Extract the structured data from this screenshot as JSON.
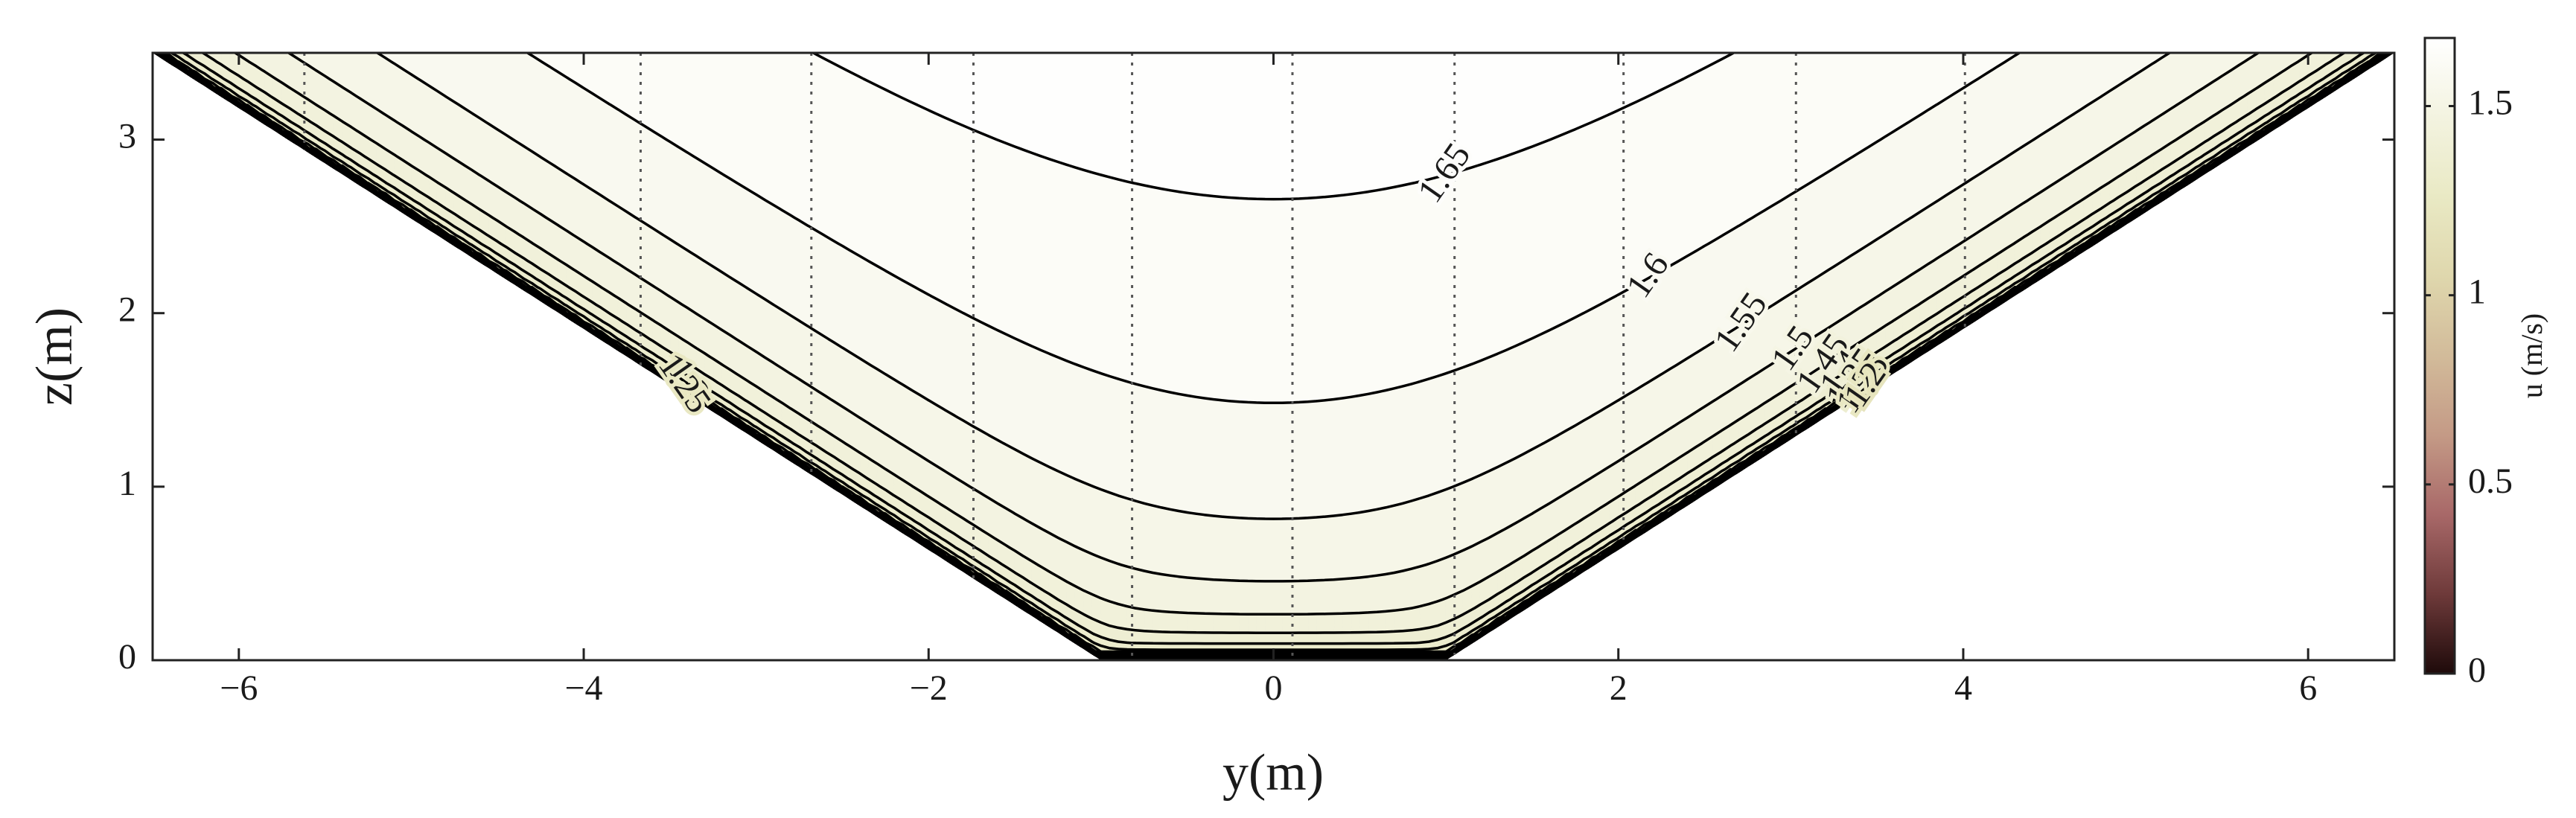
{
  "chart_data": {
    "type": "contour",
    "x_label": "y(m)",
    "y_label": "z(m)",
    "colorbar_label": "u (m/s)",
    "xlim": [
      -6.5,
      6.5
    ],
    "ylim": [
      0,
      3.5
    ],
    "xticks": [
      {
        "value": -6,
        "label": "−6"
      },
      {
        "value": -4,
        "label": "−4"
      },
      {
        "value": -2,
        "label": "−2"
      },
      0,
      2,
      4,
      6
    ],
    "yticks": [
      0,
      1,
      2,
      3
    ],
    "clim": [
      0,
      1.68
    ],
    "cticks": [
      0,
      0.5,
      1,
      1.5
    ],
    "colormap": [
      "#1e0a0a",
      "#6e3a3a",
      "#a86868",
      "#c49a86",
      "#d2bb9a",
      "#dfd7ad",
      "#e9e9c4",
      "#f3f3e0",
      "#ffffff"
    ],
    "channel": {
      "bottom": [
        -1,
        1
      ],
      "top": [
        -6.5,
        6.5
      ],
      "depth": 3.5
    },
    "levels": [
      0.05,
      0.1,
      0.15,
      0.2,
      0.25,
      0.3,
      0.35,
      0.4,
      0.45,
      0.5,
      0.55,
      0.6,
      0.65,
      0.7,
      0.75,
      0.8,
      0.85,
      0.9,
      0.95,
      1,
      1.05,
      1.1,
      1.15,
      1.2,
      1.25,
      1.3,
      1.35,
      1.4,
      1.45,
      1.5,
      1.55,
      1.6,
      1.65
    ],
    "labeled_levels_right": [
      1.65,
      1.6,
      1.55,
      1.5,
      1.45,
      1.4,
      1.35,
      1.25,
      1.2
    ],
    "labeled_levels_left": [
      1.3,
      1.25
    ],
    "profile_y": [
      -5.62,
      -3.67,
      -2.68,
      -1.74,
      -0.82,
      0.11,
      1.05,
      2.03,
      3.03,
      4.01
    ]
  }
}
